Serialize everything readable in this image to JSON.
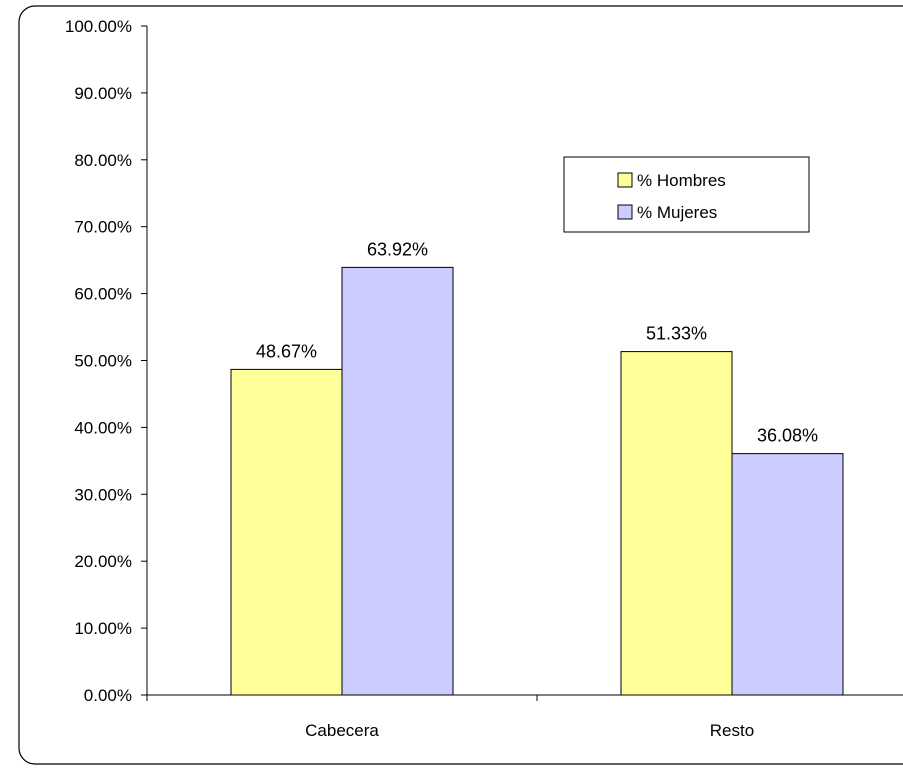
{
  "chart_data": {
    "type": "bar",
    "categories": [
      "Cabecera",
      "Resto"
    ],
    "series": [
      {
        "name": "% Hombres",
        "values": [
          48.67,
          51.33
        ],
        "color": "#FFFF99"
      },
      {
        "name": "% Mujeres",
        "values": [
          63.92,
          36.08
        ],
        "color": "#CCCCFF"
      }
    ],
    "data_labels": [
      [
        "48.67%",
        "51.33%"
      ],
      [
        "63.92%",
        "36.08%"
      ]
    ],
    "y_ticks": [
      "0.00%",
      "10.00%",
      "20.00%",
      "30.00%",
      "40.00%",
      "50.00%",
      "60.00%",
      "70.00%",
      "80.00%",
      "90.00%",
      "100.00%"
    ],
    "ylim": [
      0,
      100
    ],
    "title": "",
    "xlabel": "",
    "ylabel": "",
    "grid": false,
    "legend_position": "top-right"
  }
}
